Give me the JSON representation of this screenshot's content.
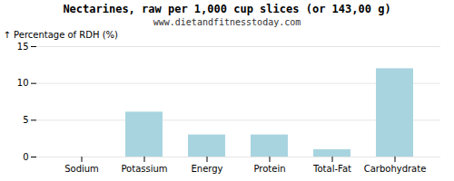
{
  "chart_data": {
    "type": "bar",
    "title": "Nectarines, raw per 1,000 cup slices (or 143,00 g)",
    "subtitle": "www.dietandfitnesstoday.com",
    "categories": [
      "Sodium",
      "Potassium",
      "Energy",
      "Protein",
      "Total-Fat",
      "Carbohydrate"
    ],
    "values": [
      0.0,
      6.1,
      3.0,
      3.0,
      1.0,
      12.0
    ],
    "color": "#a8d4e0",
    "ylabel": "Percentage of RDH (%)",
    "ylim": [
      0,
      15
    ],
    "yticks": [
      0,
      5,
      10,
      15
    ],
    "grid": true
  }
}
